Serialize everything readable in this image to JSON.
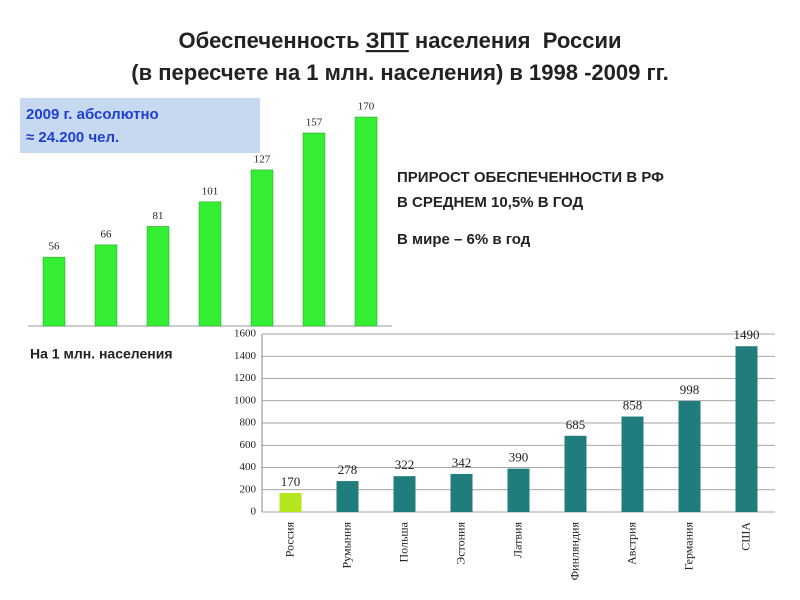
{
  "header": {
    "title_line1": [
      "Обеспеченность",
      "ЗПТ",
      "населения  России"
    ],
    "title_line2": "(в пересчете на 1 млн. населения) в 1998 -2009 гг."
  },
  "box": {
    "lines": [
      "2009 г. абсолютно",
      "≈ 24.200 чел."
    ]
  },
  "notes": [
    "ПРИРОСТ ОБЕСПЕЧЕННОСТИ В РФ",
    "В СРЕДНЕМ 10,5% В ГОД",
    "В мире – 6% в год"
  ],
  "label": "На 1 млн. населения",
  "chart_data": [
    {
      "type": "bar",
      "categories": [
        null,
        null,
        null,
        null,
        null,
        null,
        null
      ],
      "values": [
        56,
        66,
        81,
        101,
        127,
        157,
        170
      ],
      "color": "#33ee33"
    },
    {
      "type": "bar",
      "categories": [
        "Россия",
        "Румыния",
        "Польша",
        "Эстония",
        "Латвия",
        "Финляндия",
        "Австрия",
        "Германия",
        "США"
      ],
      "values": [
        170,
        278,
        322,
        342,
        390,
        685,
        858,
        998,
        1490
      ],
      "colors": [
        "#b5e61d",
        "#217c7e",
        "#217c7e",
        "#217c7e",
        "#217c7e",
        "#217c7e",
        "#217c7e",
        "#217c7e",
        "#217c7e"
      ],
      "ylim": [
        0,
        1600
      ],
      "yticks": [
        0,
        200,
        400,
        600,
        800,
        1000,
        1200,
        1400,
        1600
      ],
      "grid": true
    }
  ]
}
